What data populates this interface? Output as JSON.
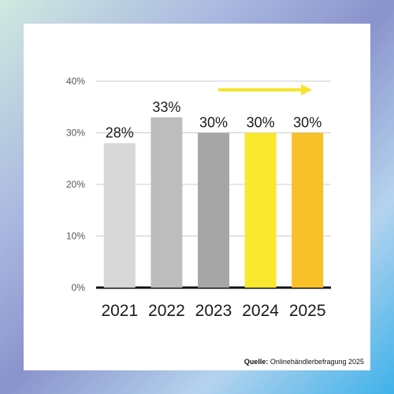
{
  "chart_data": {
    "type": "bar",
    "categories": [
      "2021",
      "2022",
      "2023",
      "2024",
      "2025"
    ],
    "values": [
      28,
      33,
      30,
      30,
      30
    ],
    "data_labels": [
      "28%",
      "33%",
      "30%",
      "30%",
      "30%"
    ],
    "colors": [
      "#d8d8d8",
      "#bdbdbd",
      "#a6a6a6",
      "#f9e82f",
      "#f8c12a"
    ],
    "ylim": [
      0,
      40
    ],
    "yticks": [
      0,
      10,
      20,
      30,
      40
    ],
    "ytick_labels": [
      "0%",
      "10%",
      "20%",
      "30%",
      "40%"
    ],
    "grid": true,
    "arrow_color": "#f5e52c"
  },
  "source": {
    "label": "Quelle:",
    "text": " Onlinehändlerbefragung 2025"
  }
}
